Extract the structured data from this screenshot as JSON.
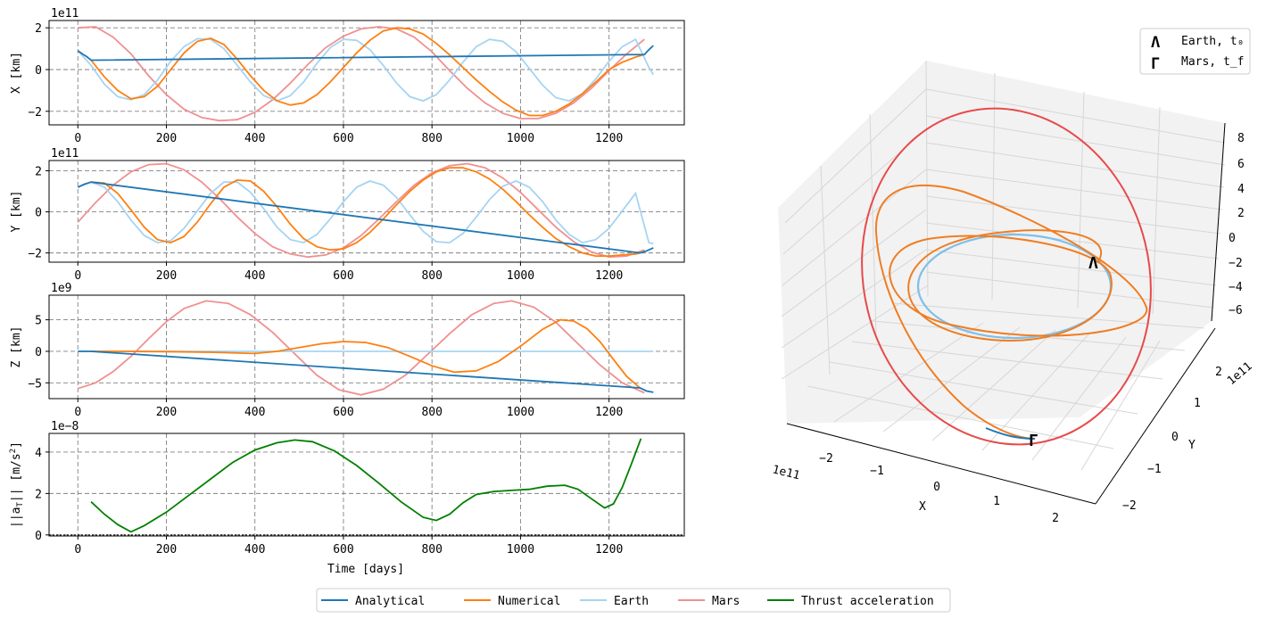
{
  "chart_data": [
    {
      "type": "line",
      "panel": "x",
      "ylabel": "X [km]",
      "offset_label": "1e11",
      "xlim": [
        -65,
        1370
      ],
      "ylim": [
        -2.65,
        2.35
      ],
      "xticks": [
        "0",
        "200",
        "400",
        "600",
        "800",
        "1000",
        "1200"
      ],
      "yticks": [
        "−2",
        "0",
        "2"
      ],
      "series": [
        {
          "name": "Analytical",
          "color": "#1f77b4",
          "x": [
            0,
            10,
            20,
            30,
            1280,
            1290,
            1300
          ],
          "y": [
            0.9,
            0.75,
            0.62,
            0.45,
            0.72,
            0.95,
            1.15
          ]
        },
        {
          "name": "Numerical",
          "color": "#ff7f0e",
          "x": [
            30,
            60,
            90,
            120,
            150,
            180,
            210,
            240,
            270,
            300,
            330,
            360,
            390,
            420,
            450,
            480,
            510,
            540,
            570,
            600,
            630,
            660,
            690,
            720,
            750,
            780,
            810,
            840,
            870,
            900,
            930,
            960,
            990,
            1020,
            1050,
            1080,
            1110,
            1140,
            1170,
            1200,
            1230,
            1260,
            1280
          ],
          "y": [
            0.45,
            -0.35,
            -1.0,
            -1.4,
            -1.3,
            -0.8,
            0.0,
            0.8,
            1.35,
            1.5,
            1.2,
            0.5,
            -0.3,
            -1.0,
            -1.5,
            -1.7,
            -1.6,
            -1.2,
            -0.6,
            0.1,
            0.8,
            1.4,
            1.85,
            2.0,
            1.95,
            1.7,
            1.25,
            0.7,
            0.1,
            -0.5,
            -1.05,
            -1.55,
            -1.95,
            -2.2,
            -2.2,
            -2.0,
            -1.65,
            -1.15,
            -0.6,
            0.0,
            0.35,
            0.6,
            0.72
          ]
        },
        {
          "name": "Earth",
          "color": "#a6d4f2",
          "x": [
            0,
            30,
            60,
            90,
            120,
            150,
            180,
            210,
            240,
            270,
            300,
            330,
            360,
            390,
            420,
            450,
            480,
            510,
            540,
            570,
            600,
            630,
            660,
            690,
            720,
            750,
            780,
            810,
            840,
            870,
            900,
            930,
            960,
            990,
            1020,
            1050,
            1080,
            1110,
            1140,
            1170,
            1200,
            1230,
            1260,
            1290,
            1300
          ],
          "y": [
            0.9,
            0.2,
            -0.7,
            -1.3,
            -1.45,
            -1.2,
            -0.5,
            0.4,
            1.1,
            1.48,
            1.45,
            1.0,
            0.2,
            -0.6,
            -1.25,
            -1.5,
            -1.25,
            -0.6,
            0.3,
            1.05,
            1.45,
            1.4,
            0.95,
            0.2,
            -0.65,
            -1.3,
            -1.5,
            -1.2,
            -0.5,
            0.35,
            1.1,
            1.45,
            1.35,
            0.85,
            0.05,
            -0.75,
            -1.35,
            -1.5,
            -1.15,
            -0.45,
            0.4,
            1.1,
            1.45,
            0.1,
            -0.25
          ]
        },
        {
          "name": "Mars",
          "color": "#f09090",
          "x": [
            0,
            40,
            80,
            120,
            160,
            200,
            240,
            280,
            320,
            360,
            400,
            440,
            480,
            520,
            560,
            600,
            640,
            680,
            720,
            760,
            800,
            840,
            880,
            920,
            960,
            1000,
            1040,
            1080,
            1120,
            1160,
            1200,
            1240,
            1280
          ],
          "y": [
            2.0,
            2.05,
            1.55,
            0.75,
            -0.3,
            -1.2,
            -1.9,
            -2.3,
            -2.45,
            -2.4,
            -2.05,
            -1.45,
            -0.65,
            0.25,
            1.05,
            1.6,
            1.95,
            2.05,
            1.95,
            1.55,
            0.85,
            -0.05,
            -0.9,
            -1.6,
            -2.1,
            -2.35,
            -2.35,
            -2.1,
            -1.6,
            -0.9,
            -0.05,
            0.75,
            1.45
          ]
        }
      ]
    },
    {
      "type": "line",
      "panel": "y",
      "ylabel": "Y [km]",
      "offset_label": "1e11",
      "xlim": [
        -65,
        1370
      ],
      "ylim": [
        -2.45,
        2.5
      ],
      "xticks": [
        "0",
        "200",
        "400",
        "600",
        "800",
        "1000",
        "1200"
      ],
      "yticks": [
        "−2",
        "0",
        "2"
      ],
      "series": [
        {
          "name": "Analytical",
          "color": "#1f77b4",
          "x": [
            0,
            15,
            30,
            1270,
            1285,
            1300
          ],
          "y": [
            1.2,
            1.35,
            1.45,
            -2.0,
            -1.9,
            -1.75
          ]
        },
        {
          "name": "Numerical",
          "color": "#ff7f0e",
          "x": [
            30,
            60,
            90,
            120,
            150,
            180,
            210,
            240,
            270,
            300,
            330,
            360,
            390,
            420,
            450,
            480,
            510,
            540,
            570,
            600,
            630,
            660,
            690,
            720,
            750,
            780,
            810,
            840,
            870,
            900,
            930,
            960,
            990,
            1020,
            1050,
            1080,
            1110,
            1140,
            1170,
            1200,
            1230,
            1260,
            1270
          ],
          "y": [
            1.45,
            1.4,
            0.9,
            0.1,
            -0.75,
            -1.35,
            -1.5,
            -1.2,
            -0.5,
            0.4,
            1.2,
            1.55,
            1.5,
            1.0,
            0.25,
            -0.6,
            -1.3,
            -1.7,
            -1.85,
            -1.8,
            -1.5,
            -1.0,
            -0.35,
            0.35,
            1.0,
            1.55,
            1.95,
            2.15,
            2.15,
            1.95,
            1.6,
            1.1,
            0.5,
            -0.15,
            -0.75,
            -1.3,
            -1.7,
            -2.0,
            -2.15,
            -2.15,
            -2.1,
            -2.05,
            -2.0
          ]
        },
        {
          "name": "Earth",
          "color": "#a6d4f2",
          "x": [
            0,
            30,
            60,
            90,
            120,
            150,
            180,
            210,
            240,
            270,
            300,
            330,
            360,
            390,
            420,
            450,
            480,
            510,
            540,
            570,
            600,
            630,
            660,
            690,
            720,
            750,
            780,
            810,
            840,
            870,
            900,
            930,
            960,
            990,
            1020,
            1050,
            1080,
            1110,
            1140,
            1170,
            1200,
            1230,
            1260,
            1290,
            1300
          ],
          "y": [
            1.2,
            1.45,
            1.2,
            0.5,
            -0.4,
            -1.15,
            -1.5,
            -1.4,
            -0.8,
            0.05,
            0.9,
            1.45,
            1.45,
            0.95,
            0.15,
            -0.75,
            -1.35,
            -1.5,
            -1.1,
            -0.35,
            0.5,
            1.2,
            1.5,
            1.3,
            0.7,
            -0.15,
            -0.95,
            -1.45,
            -1.5,
            -1.05,
            -0.25,
            0.6,
            1.25,
            1.5,
            1.2,
            0.5,
            -0.4,
            -1.1,
            -1.5,
            -1.35,
            -0.8,
            0.05,
            0.9,
            -1.5,
            -1.55
          ]
        },
        {
          "name": "Mars",
          "color": "#f09090",
          "x": [
            0,
            40,
            80,
            120,
            160,
            200,
            240,
            280,
            320,
            360,
            400,
            440,
            480,
            520,
            560,
            600,
            640,
            680,
            720,
            760,
            800,
            840,
            880,
            920,
            960,
            1000,
            1040,
            1080,
            1120,
            1160,
            1200,
            1240,
            1280
          ],
          "y": [
            -0.5,
            0.45,
            1.3,
            1.95,
            2.3,
            2.35,
            2.05,
            1.45,
            0.65,
            -0.25,
            -1.05,
            -1.7,
            -2.05,
            -2.2,
            -2.1,
            -1.75,
            -1.15,
            -0.35,
            0.5,
            1.3,
            1.9,
            2.25,
            2.35,
            2.15,
            1.65,
            0.95,
            0.1,
            -0.75,
            -1.45,
            -1.95,
            -2.2,
            -2.15,
            -1.85
          ]
        }
      ]
    },
    {
      "type": "line",
      "panel": "z",
      "ylabel": "Z [km]",
      "offset_label": "1e9",
      "xlim": [
        -65,
        1370
      ],
      "ylim": [
        -7.5,
        8.9
      ],
      "xticks": [
        "0",
        "200",
        "400",
        "600",
        "800",
        "1000",
        "1200"
      ],
      "yticks": [
        "−5",
        "0",
        "5"
      ],
      "series": [
        {
          "name": "Analytical",
          "color": "#1f77b4",
          "x": [
            0,
            30,
            1270,
            1285,
            1300
          ],
          "y": [
            0.0,
            0.0,
            -5.8,
            -6.3,
            -6.5
          ]
        },
        {
          "name": "Numerical",
          "color": "#ff7f0e",
          "x": [
            30,
            100,
            200,
            300,
            400,
            450,
            500,
            550,
            600,
            650,
            700,
            750,
            800,
            850,
            900,
            950,
            1000,
            1050,
            1090,
            1120,
            1150,
            1180,
            1210,
            1240,
            1270
          ],
          "y": [
            0.0,
            0.0,
            -0.05,
            -0.15,
            -0.35,
            0.0,
            0.6,
            1.2,
            1.55,
            1.4,
            0.6,
            -0.8,
            -2.3,
            -3.3,
            -3.1,
            -1.6,
            0.8,
            3.5,
            5.0,
            4.8,
            3.6,
            1.5,
            -1.3,
            -4.0,
            -5.8
          ]
        },
        {
          "name": "Earth",
          "color": "#a6d4f2",
          "x": [
            0,
            1300
          ],
          "y": [
            0.0,
            0.0
          ]
        },
        {
          "name": "Mars",
          "color": "#f09090",
          "x": [
            0,
            40,
            80,
            120,
            160,
            200,
            240,
            290,
            340,
            390,
            440,
            490,
            540,
            590,
            640,
            690,
            740,
            790,
            840,
            890,
            940,
            980,
            1030,
            1080,
            1130,
            1180,
            1230,
            1280
          ],
          "y": [
            -5.9,
            -5.0,
            -3.2,
            -0.8,
            2.0,
            4.7,
            6.8,
            8.0,
            7.6,
            5.8,
            3.0,
            -0.4,
            -3.8,
            -6.1,
            -6.9,
            -6.0,
            -3.8,
            -0.5,
            2.8,
            5.8,
            7.6,
            8.0,
            7.0,
            4.6,
            1.2,
            -2.2,
            -5.0,
            -6.6
          ]
        }
      ]
    },
    {
      "type": "line",
      "panel": "thrust",
      "ylabel": "||aT|| [m/s2]",
      "offset_label": "1e−8",
      "xlabel": "Time [days]",
      "xlim": [
        -65,
        1370
      ],
      "ylim": [
        -0.05,
        4.9
      ],
      "xticks": [
        "0",
        "200",
        "400",
        "600",
        "800",
        "1000",
        "1200"
      ],
      "yticks": [
        "0",
        "2",
        "4"
      ],
      "series": [
        {
          "name": "Thrust acceleration",
          "color": "#008000",
          "x": [
            30,
            60,
            90,
            120,
            150,
            200,
            250,
            300,
            350,
            400,
            450,
            490,
            530,
            580,
            630,
            680,
            730,
            780,
            810,
            840,
            870,
            900,
            940,
            980,
            1020,
            1060,
            1100,
            1130,
            1160,
            1190,
            1210,
            1230,
            1250,
            1272
          ],
          "y": [
            1.6,
            1.0,
            0.5,
            0.15,
            0.45,
            1.1,
            1.9,
            2.7,
            3.5,
            4.1,
            4.45,
            4.58,
            4.5,
            4.05,
            3.35,
            2.5,
            1.6,
            0.85,
            0.7,
            1.0,
            1.55,
            1.95,
            2.1,
            2.15,
            2.2,
            2.35,
            2.4,
            2.2,
            1.75,
            1.3,
            1.5,
            2.3,
            3.4,
            4.65
          ]
        }
      ]
    },
    {
      "type": "line3d",
      "panel": "trajectory",
      "xlabel": "X",
      "ylabel": "Y",
      "x_offset_label": "1e11",
      "y_offset_label": "1e11",
      "xticks": [
        "−2",
        "−1",
        "0",
        "1",
        "2"
      ],
      "yticks": [
        "−2",
        "−1",
        "0",
        "1",
        "2"
      ],
      "zticks": [
        "−6",
        "−4",
        "−2",
        "0",
        "2",
        "4",
        "6",
        "8"
      ],
      "legend": {
        "placement": "top-right",
        "entries": [
          {
            "label": "Earth, t₀",
            "color": "#2a8fe0",
            "marker": "Λ"
          },
          {
            "label": "Mars, t_f",
            "color": "#c0392b",
            "marker": "Γ"
          }
        ]
      }
    }
  ],
  "legend": {
    "placement": "bottom-center",
    "entries": [
      {
        "label": "Analytical",
        "color": "#1f77b4"
      },
      {
        "label": "Numerical",
        "color": "#ff7f0e"
      },
      {
        "label": "Earth",
        "color": "#a6d4f2"
      },
      {
        "label": "Mars",
        "color": "#f09090"
      },
      {
        "label": "Thrust acceleration",
        "color": "#008000"
      }
    ]
  }
}
